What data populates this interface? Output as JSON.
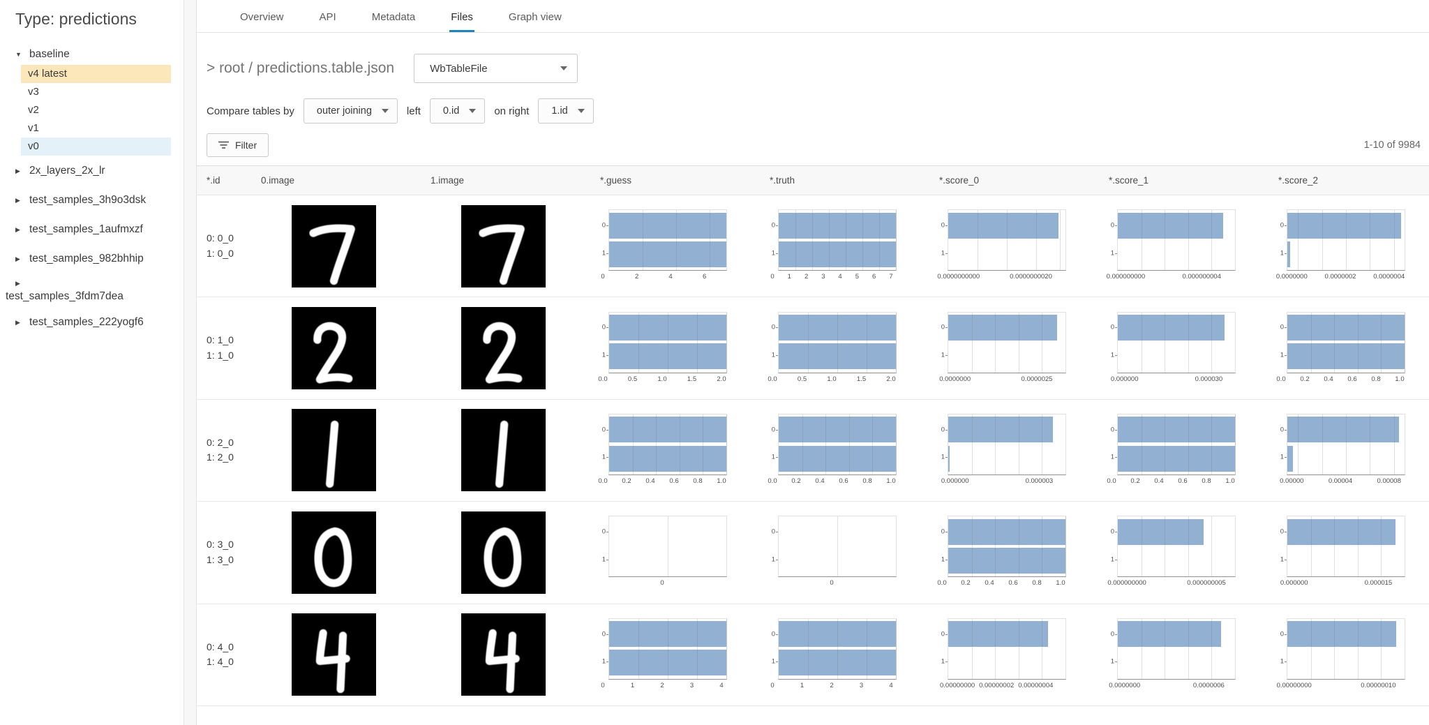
{
  "sidebar": {
    "title": "Type: predictions",
    "tree": [
      {
        "label": "baseline",
        "expanded": true,
        "children": [
          {
            "label": "v4 latest",
            "highlight": "yellow"
          },
          {
            "label": "v3"
          },
          {
            "label": "v2"
          },
          {
            "label": "v1"
          },
          {
            "label": "v0",
            "highlight": "blue"
          }
        ]
      },
      {
        "label": "2x_layers_2x_lr",
        "expanded": false
      },
      {
        "label": "test_samples_3h9o3dsk",
        "expanded": false,
        "spaced": true
      },
      {
        "label": "test_samples_1aufmxzf",
        "expanded": false,
        "spaced": true
      },
      {
        "label": "test_samples_982bhhip",
        "expanded": false,
        "spaced": true
      },
      {
        "label": "test_samples_3fdm7dea",
        "expanded": false,
        "spaced": true,
        "wrapped": true
      },
      {
        "label": "test_samples_222yogf6",
        "expanded": false,
        "spaced": true
      }
    ]
  },
  "tabs": {
    "items": [
      "Overview",
      "API",
      "Metadata",
      "Files",
      "Graph view"
    ],
    "active": "Files"
  },
  "breadcrumb": {
    "text": "> root / predictions.table.json"
  },
  "file_type_select": {
    "value": "WbTableFile"
  },
  "compare_bar": {
    "label": "Compare tables by",
    "join_select": "outer joining",
    "left_label": "left",
    "left_select": "0.id",
    "right_label": "on right",
    "right_select": "1.id"
  },
  "filter_button": {
    "label": "Filter"
  },
  "pagination": {
    "text": "1-10 of 9984"
  },
  "colors": {
    "accent_tab": "#1f83b5",
    "bar_fill": "#92b0d1",
    "highlight_yellow": "#fbe7ba",
    "highlight_blue": "#e4f1f9"
  },
  "table": {
    "columns": [
      "*.id",
      "0.image",
      "1.image",
      "*.guess",
      "*.truth",
      "*.score_0",
      "*.score_1",
      "*.score_2"
    ],
    "chart_y_labels": [
      "0",
      "1"
    ],
    "rows": [
      {
        "id_lines": [
          "0: 0_0",
          "1: 0_0"
        ],
        "digit": "7",
        "charts": {
          "guess": {
            "ticks": [
              "0",
              "2",
              "4",
              "6"
            ],
            "pos": [
              0,
              0.286,
              0.571,
              0.857
            ],
            "bars": [
              1,
              1
            ]
          },
          "truth": {
            "ticks": [
              "0",
              "1",
              "2",
              "3",
              "4",
              "5",
              "6",
              "7"
            ],
            "pos": [
              0,
              0.143,
              0.286,
              0.429,
              0.571,
              0.714,
              0.857,
              1
            ],
            "bars": [
              1,
              1
            ]
          },
          "score_0": {
            "ticks": [
              "0.0000000000",
              "0.0000000020"
            ],
            "pos": [
              0.14,
              0.75
            ],
            "grid": [
              0.25,
              0.5,
              0.75,
              0.95
            ],
            "bars": [
              0.94,
              0
            ]
          },
          "score_1": {
            "ticks": [
              "0.000000000",
              "0.000000004"
            ],
            "pos": [
              0.12,
              0.76
            ],
            "grid": [
              0.2,
              0.4,
              0.6,
              0.8
            ],
            "bars": [
              0.9,
              0
            ]
          },
          "score_2": {
            "ticks": [
              "0.0000000",
              "0.0000002",
              "0.0000004"
            ],
            "pos": [
              0.09,
              0.5,
              0.91
            ],
            "grid": [
              0.09,
              0.295,
              0.5,
              0.705,
              0.91
            ],
            "bars": [
              0.97,
              0.025
            ]
          }
        }
      },
      {
        "id_lines": [
          "0: 1_0",
          "1: 1_0"
        ],
        "digit": "2",
        "charts": {
          "guess": {
            "ticks": [
              "0.0",
              "0.5",
              "1.0",
              "1.5",
              "2.0"
            ],
            "pos": [
              0,
              0.25,
              0.5,
              0.75,
              1
            ],
            "bars": [
              1,
              1
            ]
          },
          "truth": {
            "ticks": [
              "0.0",
              "0.5",
              "1.0",
              "1.5",
              "2.0"
            ],
            "pos": [
              0,
              0.25,
              0.5,
              0.75,
              1
            ],
            "bars": [
              1,
              1
            ]
          },
          "score_0": {
            "ticks": [
              "0.0000000",
              "0.0000025"
            ],
            "pos": [
              0.11,
              0.8
            ],
            "grid": [
              0.2,
              0.4,
              0.6,
              0.8
            ],
            "bars": [
              0.93,
              0
            ]
          },
          "score_1": {
            "ticks": [
              "0.000000",
              "0.000030"
            ],
            "pos": [
              0.11,
              0.82
            ],
            "grid": [
              0.2,
              0.4,
              0.6,
              0.8
            ],
            "bars": [
              0.91,
              0
            ]
          },
          "score_2": {
            "ticks": [
              "0.0",
              "0.2",
              "0.4",
              "0.6",
              "0.8",
              "1.0"
            ],
            "pos": [
              0,
              0.2,
              0.4,
              0.6,
              0.8,
              1
            ],
            "bars": [
              1,
              1
            ]
          }
        }
      },
      {
        "id_lines": [
          "0: 2_0",
          "1: 2_0"
        ],
        "digit": "1",
        "charts": {
          "guess": {
            "ticks": [
              "0.0",
              "0.2",
              "0.4",
              "0.6",
              "0.8",
              "1.0"
            ],
            "pos": [
              0,
              0.2,
              0.4,
              0.6,
              0.8,
              1
            ],
            "bars": [
              1,
              1
            ]
          },
          "truth": {
            "ticks": [
              "0.0",
              "0.2",
              "0.4",
              "0.6",
              "0.8",
              "1.0"
            ],
            "pos": [
              0,
              0.2,
              0.4,
              0.6,
              0.8,
              1
            ],
            "bars": [
              1,
              1
            ]
          },
          "score_0": {
            "ticks": [
              "0.000000",
              "0.000003"
            ],
            "pos": [
              0.11,
              0.82
            ],
            "grid": [
              0.2,
              0.4,
              0.6,
              0.8
            ],
            "bars": [
              0.89,
              0.012
            ]
          },
          "score_1": {
            "ticks": [
              "0.0",
              "0.2",
              "0.4",
              "0.6",
              "0.8",
              "1.0"
            ],
            "pos": [
              0,
              0.2,
              0.4,
              0.6,
              0.8,
              1
            ],
            "bars": [
              1,
              1
            ]
          },
          "score_2": {
            "ticks": [
              "0.00000",
              "0.00004",
              "0.00008"
            ],
            "pos": [
              0.09,
              0.5,
              0.91
            ],
            "grid": [
              0.09,
              0.295,
              0.5,
              0.705,
              0.91
            ],
            "bars": [
              0.95,
              0.05
            ]
          }
        }
      },
      {
        "id_lines": [
          "0: 3_0",
          "1: 3_0"
        ],
        "digit": "0",
        "charts": {
          "guess": {
            "ticks": [
              "0"
            ],
            "pos": [
              0.5
            ],
            "grid": [
              0.5
            ],
            "bars": [
              0,
              0
            ]
          },
          "truth": {
            "ticks": [
              "0"
            ],
            "pos": [
              0.5
            ],
            "grid": [
              0.5
            ],
            "bars": [
              0,
              0
            ]
          },
          "score_0": {
            "ticks": [
              "0.0",
              "0.2",
              "0.4",
              "0.6",
              "0.8",
              "1.0"
            ],
            "pos": [
              0,
              0.2,
              0.4,
              0.6,
              0.8,
              1
            ],
            "bars": [
              1,
              1
            ]
          },
          "score_1": {
            "ticks": [
              "0.000000000",
              "0.000000005"
            ],
            "pos": [
              0.13,
              0.8
            ],
            "grid": [
              0.2,
              0.4,
              0.6,
              0.8
            ],
            "bars": [
              0.73,
              0
            ]
          },
          "score_2": {
            "ticks": [
              "0.000000",
              "0.000015"
            ],
            "pos": [
              0.11,
              0.82
            ],
            "grid": [
              0.2,
              0.4,
              0.6,
              0.8
            ],
            "bars": [
              0.92,
              0
            ]
          }
        }
      },
      {
        "id_lines": [
          "0: 4_0",
          "1: 4_0"
        ],
        "digit": "4",
        "charts": {
          "guess": {
            "ticks": [
              "0",
              "1",
              "2",
              "3",
              "4"
            ],
            "pos": [
              0,
              0.25,
              0.5,
              0.75,
              1
            ],
            "bars": [
              1,
              1
            ]
          },
          "truth": {
            "ticks": [
              "0",
              "1",
              "2",
              "3",
              "4"
            ],
            "pos": [
              0,
              0.25,
              0.5,
              0.75,
              1
            ],
            "bars": [
              1,
              1
            ]
          },
          "score_0": {
            "ticks": [
              "0.00000000",
              "0.00000002",
              "0.00000004"
            ],
            "pos": [
              0.13,
              0.46,
              0.79
            ],
            "grid": [
              0.2,
              0.4,
              0.6,
              0.8
            ],
            "bars": [
              0.85,
              0
            ]
          },
          "score_1": {
            "ticks": [
              "0.0000000",
              "0.0000006"
            ],
            "pos": [
              0.11,
              0.82
            ],
            "grid": [
              0.2,
              0.4,
              0.6,
              0.8
            ],
            "bars": [
              0.88,
              0
            ]
          },
          "score_2": {
            "ticks": [
              "0.00000000",
              "0.00000010"
            ],
            "pos": [
              0.11,
              0.82
            ],
            "grid": [
              0.2,
              0.4,
              0.6,
              0.8
            ],
            "bars": [
              0.93,
              0
            ]
          }
        }
      }
    ]
  }
}
